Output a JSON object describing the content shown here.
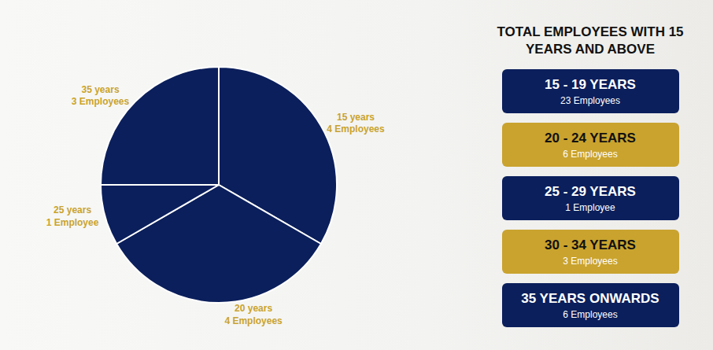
{
  "chart_data": {
    "type": "pie",
    "categories": [
      "15 years",
      "20 years",
      "25 years",
      "35 years"
    ],
    "values": [
      4,
      4,
      1,
      3
    ],
    "value_labels": [
      "4 Employees",
      "4 Employees",
      "1 Employee",
      "3 Employees"
    ],
    "color": "#0b1f5c",
    "data_labels": true
  },
  "panel": {
    "title": "TOTAL EMPLOYEES WITH 15 YEARS AND ABOVE",
    "items": [
      {
        "label": "15 - 19 YEARS",
        "text": "23 Employees",
        "color": "#0b1f5c"
      },
      {
        "label": "20 - 24 YEARS",
        "text": "6 Employees",
        "color": "#c9a32e"
      },
      {
        "label": "25 - 29 YEARS",
        "text": "1 Employee",
        "color": "#0b1f5c"
      },
      {
        "label": "30 - 34 YEARS",
        "text": "3 Employees",
        "color": "#c9a32e"
      },
      {
        "label": "35 YEARS ONWARDS",
        "text": "6 Employees",
        "color": "#0b1f5c"
      }
    ]
  }
}
